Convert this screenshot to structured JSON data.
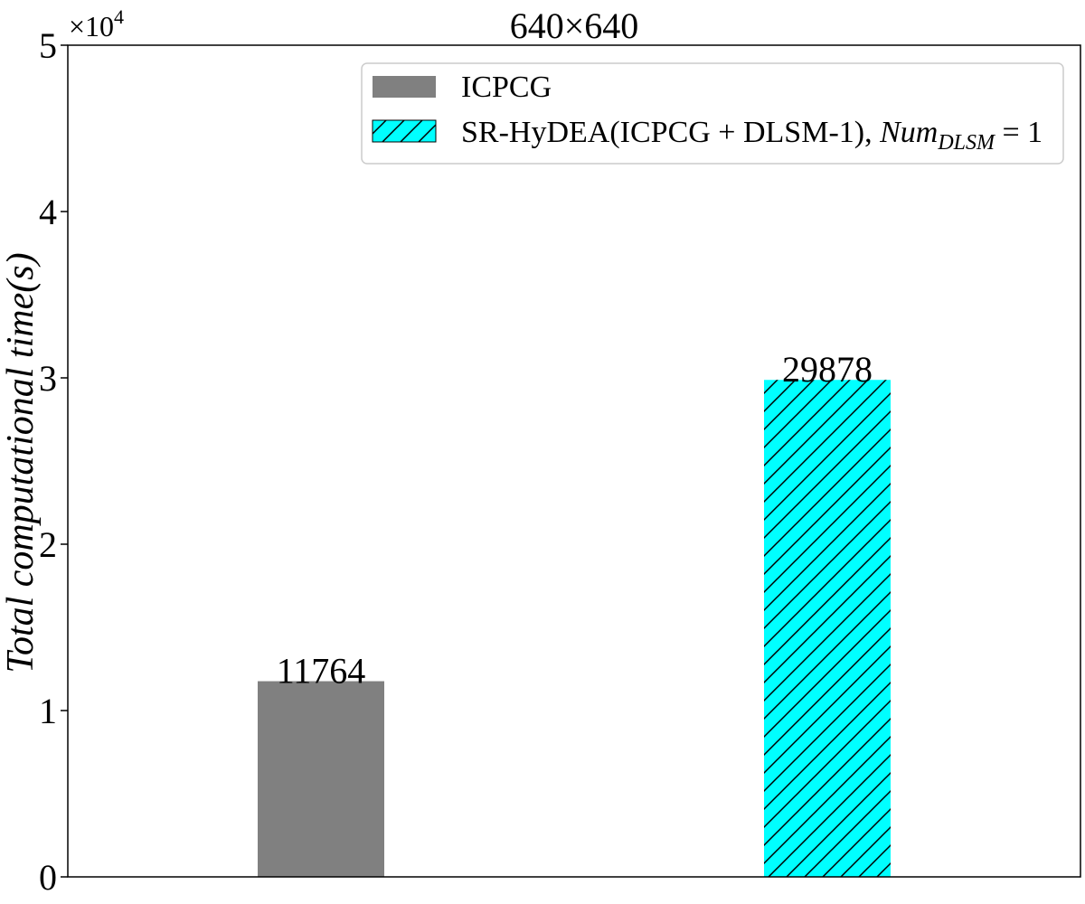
{
  "chart_data": {
    "type": "bar",
    "title": "640×640",
    "ylabel": "Total computational time(s)",
    "xlabel": "",
    "ylim": [
      0,
      50000
    ],
    "yticks": [
      0,
      10000,
      20000,
      30000,
      40000,
      50000
    ],
    "ytick_labels": [
      "0",
      "1",
      "2",
      "3",
      "4",
      "5"
    ],
    "y_multiplier_label": "×10",
    "y_multiplier_exponent": "4",
    "grid": false,
    "legend_position": "top-right",
    "series": [
      {
        "name": "ICPCG",
        "value": 11764,
        "value_label": "11764",
        "color": "#808080",
        "hatch": false
      },
      {
        "name": "SR-HyDEA(ICPCG + DLSM-1), ",
        "name_math": "Num",
        "name_math_sub": "DLSM",
        "name_math_rest": " = 1",
        "value": 29878,
        "value_label": "29878",
        "color": "#00ffff",
        "hatch": true
      }
    ]
  }
}
